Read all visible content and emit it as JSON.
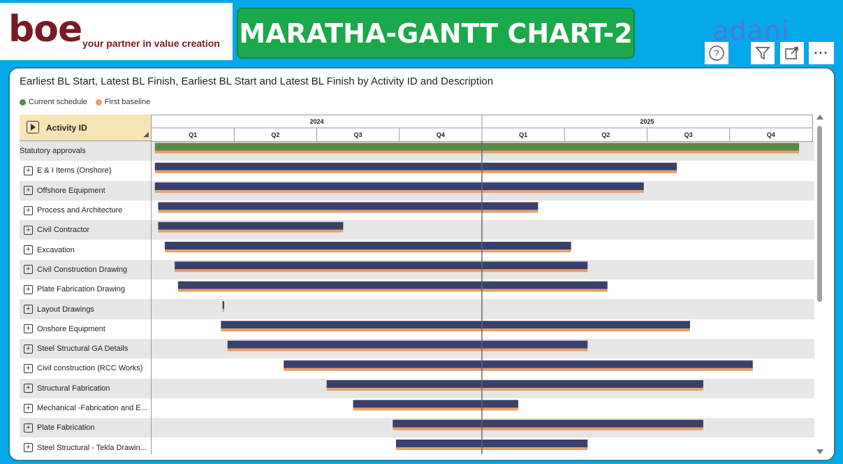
{
  "header": {
    "logo_text": "boe",
    "logo_tagline": "your partner in value creation",
    "title": "MARATHA-GANTT CHART-2",
    "partner_logo": "adani",
    "toolbar": {
      "help_icon": "?",
      "filter_icon": "filter-icon",
      "focus_icon": "focus-mode-icon",
      "more_icon": "···"
    }
  },
  "visual": {
    "title": "Earliest BL Start, Latest BL Finish, Earliest BL Start and Latest BL Finish by Activity ID and Description",
    "column_header": "Activity ID",
    "colors": {
      "current": "#5a8a45",
      "baseline": "#e8a06a",
      "bar": "#39406a",
      "today_line": "#666666"
    }
  },
  "chart_data": {
    "type": "gantt",
    "legend": [
      "Current schedule",
      "First baseline"
    ],
    "legend_position": "top-left",
    "years": [
      {
        "label": "2024",
        "quarters": [
          "Q1",
          "Q2",
          "Q3",
          "Q4"
        ]
      },
      {
        "label": "2025",
        "quarters": [
          "Q1",
          "Q2",
          "Q3",
          "Q4"
        ]
      }
    ],
    "x_range": [
      2024.0,
      2026.0
    ],
    "today": 2025.0,
    "rows": [
      {
        "label": "Statutory approvals",
        "expandable": false,
        "start": 2024.01,
        "end": 2025.96,
        "color": "current"
      },
      {
        "label": "E & I Items (Onshore)",
        "expandable": true,
        "start": 2024.01,
        "end": 2025.59
      },
      {
        "label": "Offshore Equipment",
        "expandable": true,
        "start": 2024.01,
        "end": 2025.49
      },
      {
        "label": "Process and Architecture",
        "expandable": true,
        "start": 2024.02,
        "end": 2025.17
      },
      {
        "label": "Civil Contractor",
        "expandable": true,
        "start": 2024.02,
        "end": 2024.58
      },
      {
        "label": "Excavation",
        "expandable": true,
        "start": 2024.04,
        "end": 2025.27
      },
      {
        "label": "Civil Construction Drawing",
        "expandable": true,
        "start": 2024.07,
        "end": 2025.32
      },
      {
        "label": "Plate Fabrication Drawing",
        "expandable": true,
        "start": 2024.08,
        "end": 2025.38
      },
      {
        "label": "Layout Drawings",
        "expandable": true,
        "start": 2024.215,
        "end": 2024.22
      },
      {
        "label": "Onshore Equipment",
        "expandable": true,
        "start": 2024.21,
        "end": 2025.63
      },
      {
        "label": "Steel Structural GA Details",
        "expandable": true,
        "start": 2024.23,
        "end": 2025.32
      },
      {
        "label": "Civil construction (RCC Works)",
        "expandable": true,
        "start": 2024.4,
        "end": 2025.82
      },
      {
        "label": "Structural Fabrication",
        "expandable": true,
        "start": 2024.53,
        "end": 2025.67
      },
      {
        "label": "Mechanical -Fabrication and E...",
        "expandable": true,
        "start": 2024.61,
        "end": 2025.11
      },
      {
        "label": "Plate Fabrication",
        "expandable": true,
        "start": 2024.73,
        "end": 2025.67
      },
      {
        "label": "Steel Structural - Tekla Drawin...",
        "expandable": true,
        "start": 2024.74,
        "end": 2025.32
      }
    ]
  }
}
